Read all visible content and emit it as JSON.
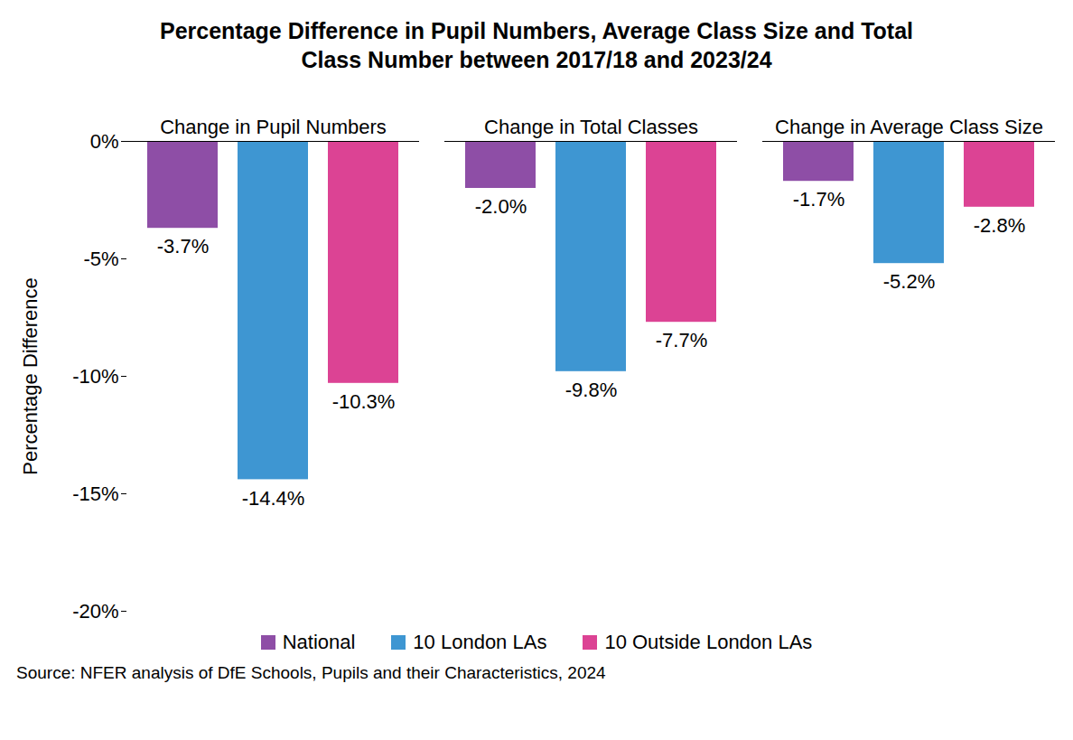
{
  "chart_data": {
    "type": "bar",
    "title": "Percentage Difference in Pupil Numbers, Average Class Size and Total Class Number  between 2017/18 and 2023/24",
    "y_label": "Percentage Difference",
    "source": "Source: NFER analysis of DfE Schools, Pupils and their Characteristics, 2024",
    "categories": [
      "Change in Pupil Numbers",
      "Change in Total Classes",
      "Change in Average Class Size"
    ],
    "series": [
      {
        "name": "National",
        "color": "#8e4ea6",
        "values": [
          -3.7,
          -2.0,
          -1.7
        ],
        "value_labels": [
          "-3.7%",
          "-2.0%",
          "-1.7%"
        ]
      },
      {
        "name": "10 London LAs",
        "color": "#3e96d2",
        "values": [
          -14.4,
          -9.8,
          -5.2
        ],
        "value_labels": [
          "-14.4%",
          "-9.8%",
          "-5.2%"
        ]
      },
      {
        "name": "10 Outside London LAs",
        "color": "#dc4394",
        "values": [
          -10.3,
          -7.7,
          -2.8
        ],
        "value_labels": [
          "-10.3%",
          "-7.7%",
          "-2.8%"
        ]
      }
    ],
    "ylim": [
      -20,
      0
    ],
    "yticks": [
      {
        "value": -20,
        "label": "-20%"
      },
      {
        "value": -15,
        "label": "-15%"
      },
      {
        "value": -10,
        "label": "-10%"
      },
      {
        "value": -5,
        "label": "-5%"
      },
      {
        "value": 0,
        "label": "0%"
      }
    ],
    "grid": false,
    "legend": "bottom",
    "data_labels": true
  }
}
